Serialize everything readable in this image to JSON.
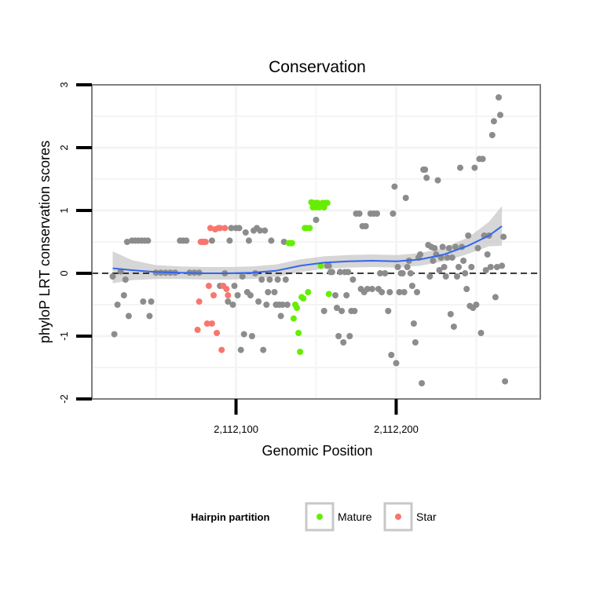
{
  "chart_data": {
    "type": "scatter",
    "title": "Conservation",
    "xlabel": "Genomic Position",
    "ylabel": "phyloP LRT conservation scores",
    "xlim": [
      2112010,
      2112290
    ],
    "ylim": [
      -2,
      3
    ],
    "x_ticks": [
      {
        "value": 2112100,
        "label": "2,112,100"
      },
      {
        "value": 2112200,
        "label": "2,112,200"
      }
    ],
    "y_ticks": [
      {
        "value": -2,
        "label": "-2"
      },
      {
        "value": -1,
        "label": "-1"
      },
      {
        "value": 0,
        "label": "0"
      },
      {
        "value": 1,
        "label": "1"
      },
      {
        "value": 2,
        "label": "2"
      },
      {
        "value": 3,
        "label": "3"
      }
    ],
    "reference_line": {
      "y": 0,
      "style": "dashed"
    },
    "grid": true,
    "colors": {
      "other": "#8c8c8c",
      "mature": "#66ee00",
      "star": "#f8766d",
      "smooth": "#3366ee",
      "band": "#c8c8c8",
      "panel": "#ffffff",
      "grid": "#f4f4f4",
      "border": "#7f7f7f"
    },
    "legend": {
      "title": "Hairpin partition",
      "position": "bottom",
      "entries": [
        {
          "label": "Mature",
          "key": "mature"
        },
        {
          "label": "Star",
          "key": "star"
        }
      ]
    },
    "series": [
      {
        "name": "Other",
        "key": "other",
        "points": [
          [
            2112023,
            -0.05
          ],
          [
            2112024,
            -0.97
          ],
          [
            2112026,
            -0.5
          ],
          [
            2112028,
            0.03
          ],
          [
            2112030,
            -0.35
          ],
          [
            2112031,
            -0.1
          ],
          [
            2112032,
            0.5
          ],
          [
            2112033,
            -0.68
          ],
          [
            2112035,
            0.52
          ],
          [
            2112037,
            0.52
          ],
          [
            2112039,
            0.52
          ],
          [
            2112041,
            0.52
          ],
          [
            2112042,
            -0.45
          ],
          [
            2112043,
            0.52
          ],
          [
            2112045,
            0.52
          ],
          [
            2112046,
            -0.68
          ],
          [
            2112047,
            -0.45
          ],
          [
            2112050,
            0.01
          ],
          [
            2112053,
            0.01
          ],
          [
            2112056,
            0.01
          ],
          [
            2112059,
            0.01
          ],
          [
            2112062,
            0.01
          ],
          [
            2112065,
            0.52
          ],
          [
            2112067,
            0.52
          ],
          [
            2112069,
            0.52
          ],
          [
            2112071,
            0.01
          ],
          [
            2112074,
            0.01
          ],
          [
            2112077,
            0.01
          ],
          [
            2112085,
            0.52
          ],
          [
            2112090,
            -0.2
          ],
          [
            2112093,
            0.0
          ],
          [
            2112095,
            -0.45
          ],
          [
            2112096,
            0.52
          ],
          [
            2112097,
            0.72
          ],
          [
            2112098,
            -0.5
          ],
          [
            2112099,
            -0.2
          ],
          [
            2112100,
            0.72
          ],
          [
            2112101,
            -0.35
          ],
          [
            2112102,
            0.72
          ],
          [
            2112103,
            -1.22
          ],
          [
            2112104,
            -0.05
          ],
          [
            2112105,
            -0.97
          ],
          [
            2112106,
            0.65
          ],
          [
            2112107,
            -0.3
          ],
          [
            2112108,
            0.52
          ],
          [
            2112109,
            -0.35
          ],
          [
            2112110,
            -1.0
          ],
          [
            2112111,
            0.68
          ],
          [
            2112112,
            0.0
          ],
          [
            2112113,
            0.72
          ],
          [
            2112114,
            -0.45
          ],
          [
            2112115,
            0.68
          ],
          [
            2112116,
            -0.1
          ],
          [
            2112117,
            -1.22
          ],
          [
            2112118,
            0.68
          ],
          [
            2112119,
            -0.5
          ],
          [
            2112120,
            -0.3
          ],
          [
            2112121,
            -0.1
          ],
          [
            2112122,
            0.52
          ],
          [
            2112124,
            -0.3
          ],
          [
            2112125,
            -0.5
          ],
          [
            2112126,
            -0.1
          ],
          [
            2112127,
            -0.5
          ],
          [
            2112128,
            -0.68
          ],
          [
            2112129,
            -0.5
          ],
          [
            2112130,
            0.5
          ],
          [
            2112131,
            -0.1
          ],
          [
            2112132,
            -0.5
          ],
          [
            2112150,
            0.85
          ],
          [
            2112155,
            -0.6
          ],
          [
            2112157,
            0.12
          ],
          [
            2112158,
            0.12
          ],
          [
            2112159,
            0.02
          ],
          [
            2112160,
            0.02
          ],
          [
            2112162,
            -0.35
          ],
          [
            2112163,
            -0.55
          ],
          [
            2112164,
            -1.0
          ],
          [
            2112165,
            0.02
          ],
          [
            2112166,
            -0.6
          ],
          [
            2112167,
            -1.1
          ],
          [
            2112168,
            0.02
          ],
          [
            2112169,
            -0.35
          ],
          [
            2112170,
            0.02
          ],
          [
            2112171,
            -1.0
          ],
          [
            2112172,
            -0.6
          ],
          [
            2112173,
            -0.1
          ],
          [
            2112174,
            -0.6
          ],
          [
            2112175,
            0.95
          ],
          [
            2112177,
            0.95
          ],
          [
            2112178,
            -0.25
          ],
          [
            2112179,
            0.75
          ],
          [
            2112180,
            -0.3
          ],
          [
            2112181,
            0.75
          ],
          [
            2112182,
            -0.25
          ],
          [
            2112184,
            0.95
          ],
          [
            2112185,
            -0.25
          ],
          [
            2112186,
            0.95
          ],
          [
            2112188,
            0.95
          ],
          [
            2112189,
            -0.25
          ],
          [
            2112190,
            0.0
          ],
          [
            2112191,
            -0.3
          ],
          [
            2112193,
            0.0
          ],
          [
            2112195,
            -0.6
          ],
          [
            2112196,
            -0.3
          ],
          [
            2112197,
            -1.3
          ],
          [
            2112198,
            0.95
          ],
          [
            2112199,
            1.38
          ],
          [
            2112200,
            -1.43
          ],
          [
            2112201,
            0.1
          ],
          [
            2112202,
            -0.3
          ],
          [
            2112203,
            0.0
          ],
          [
            2112204,
            0.0
          ],
          [
            2112205,
            -0.3
          ],
          [
            2112206,
            1.2
          ],
          [
            2112207,
            0.1
          ],
          [
            2112208,
            0.2
          ],
          [
            2112209,
            0.0
          ],
          [
            2112210,
            -0.2
          ],
          [
            2112211,
            -0.8
          ],
          [
            2112212,
            -1.1
          ],
          [
            2112213,
            -0.3
          ],
          [
            2112214,
            0.25
          ],
          [
            2112215,
            0.3
          ],
          [
            2112216,
            -1.75
          ],
          [
            2112217,
            1.65
          ],
          [
            2112218,
            1.65
          ],
          [
            2112219,
            1.52
          ],
          [
            2112220,
            0.45
          ],
          [
            2112221,
            -0.05
          ],
          [
            2112222,
            0.42
          ],
          [
            2112223,
            0.2
          ],
          [
            2112224,
            0.4
          ],
          [
            2112225,
            0.3
          ],
          [
            2112226,
            1.48
          ],
          [
            2112227,
            0.05
          ],
          [
            2112228,
            0.25
          ],
          [
            2112229,
            0.42
          ],
          [
            2112230,
            0.1
          ],
          [
            2112231,
            -0.05
          ],
          [
            2112232,
            0.25
          ],
          [
            2112233,
            0.4
          ],
          [
            2112234,
            -0.65
          ],
          [
            2112235,
            0.25
          ],
          [
            2112236,
            -0.85
          ],
          [
            2112237,
            0.42
          ],
          [
            2112238,
            -0.05
          ],
          [
            2112239,
            0.1
          ],
          [
            2112240,
            1.68
          ],
          [
            2112241,
            0.42
          ],
          [
            2112242,
            0.2
          ],
          [
            2112243,
            0.0
          ],
          [
            2112244,
            -0.25
          ],
          [
            2112245,
            0.6
          ],
          [
            2112246,
            -0.52
          ],
          [
            2112247,
            0.1
          ],
          [
            2112248,
            -0.55
          ],
          [
            2112249,
            1.68
          ],
          [
            2112250,
            -0.5
          ],
          [
            2112251,
            0.4
          ],
          [
            2112252,
            1.82
          ],
          [
            2112253,
            -0.95
          ],
          [
            2112254,
            1.82
          ],
          [
            2112255,
            0.6
          ],
          [
            2112256,
            0.05
          ],
          [
            2112257,
            0.3
          ],
          [
            2112258,
            0.6
          ],
          [
            2112259,
            0.1
          ],
          [
            2112260,
            2.2
          ],
          [
            2112261,
            2.42
          ],
          [
            2112262,
            -0.38
          ],
          [
            2112263,
            0.1
          ],
          [
            2112264,
            2.8
          ],
          [
            2112265,
            2.52
          ],
          [
            2112266,
            0.12
          ],
          [
            2112267,
            0.58
          ],
          [
            2112268,
            -1.72
          ]
        ]
      },
      {
        "name": "Mature",
        "key": "mature",
        "points": [
          [
            2112133,
            0.48
          ],
          [
            2112134,
            0.48
          ],
          [
            2112135,
            0.48
          ],
          [
            2112136,
            -0.72
          ],
          [
            2112137,
            -0.5
          ],
          [
            2112138,
            -0.55
          ],
          [
            2112139,
            -0.95
          ],
          [
            2112140,
            -1.25
          ],
          [
            2112141,
            -0.38
          ],
          [
            2112142,
            -0.4
          ],
          [
            2112143,
            0.72
          ],
          [
            2112144,
            0.72
          ],
          [
            2112145,
            -0.3
          ],
          [
            2112146,
            0.72
          ],
          [
            2112147,
            1.13
          ],
          [
            2112148,
            1.05
          ],
          [
            2112149,
            1.12
          ],
          [
            2112150,
            1.05
          ],
          [
            2112151,
            1.12
          ],
          [
            2112152,
            1.05
          ],
          [
            2112153,
            0.12
          ],
          [
            2112154,
            1.12
          ],
          [
            2112155,
            1.05
          ],
          [
            2112156,
            1.12
          ],
          [
            2112157,
            1.12
          ],
          [
            2112158,
            -0.33
          ]
        ]
      },
      {
        "name": "Star",
        "key": "star",
        "points": [
          [
            2112076,
            -0.9
          ],
          [
            2112077,
            -0.45
          ],
          [
            2112078,
            0.5
          ],
          [
            2112079,
            0.5
          ],
          [
            2112080,
            0.5
          ],
          [
            2112081,
            0.5
          ],
          [
            2112082,
            -0.8
          ],
          [
            2112083,
            -0.2
          ],
          [
            2112084,
            0.72
          ],
          [
            2112085,
            -0.8
          ],
          [
            2112086,
            -0.35
          ],
          [
            2112087,
            0.7
          ],
          [
            2112088,
            -0.95
          ],
          [
            2112089,
            0.72
          ],
          [
            2112090,
            0.72
          ],
          [
            2112091,
            -1.22
          ],
          [
            2112092,
            -0.2
          ],
          [
            2112093,
            0.72
          ],
          [
            2112094,
            -0.25
          ],
          [
            2112095,
            -0.35
          ]
        ]
      }
    ],
    "smooth": {
      "x": [
        2112023,
        2112035,
        2112050,
        2112065,
        2112080,
        2112095,
        2112110,
        2112125,
        2112140,
        2112155,
        2112170,
        2112185,
        2112200,
        2112215,
        2112230,
        2112245,
        2112258,
        2112266
      ],
      "y": [
        0.08,
        0.05,
        0.02,
        0.01,
        0.0,
        0.0,
        0.01,
        0.04,
        0.12,
        0.17,
        0.19,
        0.2,
        0.19,
        0.22,
        0.3,
        0.44,
        0.6,
        0.75
      ],
      "lower": [
        -0.16,
        -0.11,
        -0.09,
        -0.09,
        -0.1,
        -0.1,
        -0.09,
        -0.06,
        0.02,
        0.07,
        0.09,
        0.1,
        0.09,
        0.12,
        0.19,
        0.31,
        0.43,
        0.44
      ],
      "upper": [
        0.35,
        0.21,
        0.13,
        0.11,
        0.1,
        0.1,
        0.11,
        0.14,
        0.22,
        0.27,
        0.29,
        0.3,
        0.29,
        0.32,
        0.41,
        0.57,
        0.82,
        1.07
      ]
    }
  }
}
